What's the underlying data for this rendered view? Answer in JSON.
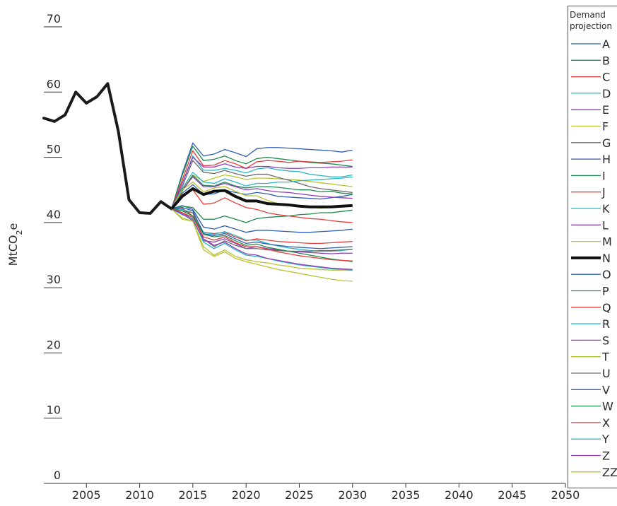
{
  "chart_data": {
    "type": "line",
    "title": "",
    "xlabel": "",
    "ylabel": {
      "main": "MtCO",
      "sub": "2",
      "suffix": "e"
    },
    "xlim": [
      2001,
      2050
    ],
    "ylim": [
      0,
      70
    ],
    "x_ticks": [
      2005,
      2010,
      2015,
      2020,
      2025,
      2030,
      2035,
      2040,
      2045,
      2050
    ],
    "x_tick_labels": [
      "2005",
      "2010",
      "2015",
      "2020",
      "2025",
      "2030",
      "2035",
      "2040",
      "2045",
      "2050"
    ],
    "y_ticks": [
      0,
      10,
      20,
      30,
      40,
      50,
      60,
      70
    ],
    "y_tick_labels": [
      "0",
      "10",
      "20",
      "30",
      "40",
      "50",
      "60",
      "70"
    ],
    "grid": false,
    "legend": {
      "title_lines": [
        "Demand",
        "projection"
      ],
      "placement": "right"
    },
    "historical": {
      "name": "",
      "color": "#1a1a1a",
      "x": [
        2001,
        2002,
        2003,
        2004,
        2005,
        2006,
        2007,
        2008,
        2009,
        2010,
        2011,
        2012,
        2013
      ],
      "values": [
        56.0,
        55.5,
        56.5,
        60.0,
        58.3,
        59.3,
        61.3,
        54.0,
        43.5,
        41.5,
        41.4,
        43.2,
        42.1
      ]
    },
    "projection_years": [
      2013,
      2014,
      2015,
      2016,
      2017,
      2018,
      2019,
      2020,
      2021,
      2022,
      2023,
      2024,
      2025,
      2026,
      2027,
      2028,
      2029,
      2030
    ],
    "series": [
      {
        "name": "A",
        "color": "#2f5fb0",
        "values": [
          42.1,
          47.5,
          52.2,
          50.2,
          50.5,
          51.2,
          50.7,
          50.1,
          51.3,
          51.5,
          51.5,
          51.4,
          51.3,
          51.2,
          51.1,
          51.0,
          50.8,
          51.1
        ]
      },
      {
        "name": "B",
        "color": "#1f8a4c",
        "values": [
          42.1,
          47.2,
          51.7,
          49.5,
          49.7,
          50.2,
          49.5,
          49.0,
          49.8,
          50.0,
          49.8,
          49.6,
          49.4,
          49.2,
          49.1,
          49.0,
          48.8,
          48.6
        ]
      },
      {
        "name": "C",
        "color": "#e83a3a",
        "values": [
          42.1,
          46.5,
          51.0,
          48.7,
          48.8,
          49.5,
          49.0,
          48.3,
          49.3,
          49.5,
          49.4,
          49.2,
          49.4,
          49.3,
          49.2,
          49.3,
          49.4,
          49.6
        ]
      },
      {
        "name": "D",
        "color": "#29b7c2",
        "values": [
          42.1,
          46.0,
          50.2,
          48.0,
          48.0,
          48.3,
          48.0,
          47.6,
          48.2,
          48.4,
          48.1,
          47.9,
          47.8,
          47.4,
          47.2,
          47.0,
          47.0,
          47.3
        ]
      },
      {
        "name": "E",
        "color": "#8e3db8",
        "values": [
          42.1,
          46.0,
          50.0,
          48.5,
          48.5,
          49.0,
          48.5,
          48.3,
          48.6,
          48.6,
          48.4,
          48.3,
          48.3,
          48.4,
          48.4,
          48.5,
          48.5,
          48.5
        ]
      },
      {
        "name": "F",
        "color": "#b8c22f",
        "values": [
          42.1,
          45.0,
          47.3,
          46.3,
          46.8,
          47.3,
          47.0,
          46.6,
          46.8,
          46.8,
          46.7,
          46.6,
          46.5,
          46.3,
          46.1,
          45.9,
          45.7,
          45.5
        ]
      },
      {
        "name": "G",
        "color": "#6a6a6a",
        "values": [
          42.1,
          45.5,
          49.5,
          47.7,
          47.5,
          48.0,
          47.5,
          47.1,
          47.4,
          47.4,
          46.9,
          46.5,
          46.0,
          45.5,
          45.2,
          45.0,
          44.8,
          44.6
        ]
      },
      {
        "name": "H",
        "color": "#2f5fb0",
        "values": [
          42.1,
          44.5,
          45.8,
          44.3,
          44.4,
          45.0,
          44.6,
          44.3,
          44.6,
          44.4,
          44.0,
          43.9,
          43.8,
          43.7,
          43.6,
          43.8,
          44.0,
          44.3
        ]
      },
      {
        "name": "I",
        "color": "#1f8a4c",
        "values": [
          42.1,
          44.8,
          47.2,
          45.7,
          45.6,
          46.2,
          45.6,
          45.3,
          45.5,
          45.5,
          45.4,
          45.2,
          45.0,
          45.0,
          44.7,
          44.8,
          44.5,
          44.4
        ]
      },
      {
        "name": "J",
        "color": "#e83a3a",
        "values": [
          42.1,
          44.3,
          45.0,
          42.8,
          43.0,
          43.8,
          43.0,
          42.3,
          42.0,
          41.5,
          41.2,
          41.0,
          40.8,
          40.6,
          40.5,
          40.3,
          40.1,
          40.0
        ]
      },
      {
        "name": "K",
        "color": "#29b7c2",
        "values": [
          42.1,
          45.2,
          47.7,
          46.2,
          46.0,
          46.7,
          46.2,
          45.6,
          46.0,
          46.0,
          46.2,
          46.2,
          46.4,
          46.5,
          46.6,
          46.7,
          46.8,
          47.0
        ]
      },
      {
        "name": "L",
        "color": "#8e3db8",
        "values": [
          42.1,
          45.0,
          47.0,
          45.5,
          45.5,
          46.0,
          45.5,
          45.0,
          45.2,
          44.9,
          44.7,
          44.6,
          44.4,
          44.2,
          44.0,
          43.9,
          43.8,
          43.7
        ]
      },
      {
        "name": "M",
        "color": "#b8c22f",
        "values": [
          42.1,
          45.0,
          46.2,
          44.7,
          45.3,
          45.5,
          44.8,
          44.1,
          44.1,
          43.4,
          42.9,
          42.6,
          42.4,
          42.3,
          42.2,
          42.3,
          42.5,
          42.7
        ]
      },
      {
        "name": "N",
        "color": "#111111",
        "values": [
          42.1,
          44.0,
          45.2,
          44.3,
          44.8,
          44.9,
          44.0,
          43.3,
          43.3,
          42.9,
          42.8,
          42.7,
          42.5,
          42.4,
          42.4,
          42.4,
          42.5,
          42.6
        ]
      },
      {
        "name": "O",
        "color": "#2f5fb0",
        "values": [
          42.1,
          42.6,
          42.0,
          39.3,
          39.0,
          39.5,
          39.0,
          38.5,
          38.8,
          38.8,
          38.7,
          38.6,
          38.5,
          38.5,
          38.6,
          38.7,
          38.8,
          39.0
        ]
      },
      {
        "name": "P",
        "color": "#1f8a4c",
        "values": [
          42.1,
          42.5,
          42.3,
          40.5,
          40.5,
          41.0,
          40.5,
          40.0,
          40.6,
          40.8,
          40.9,
          41.0,
          41.2,
          41.3,
          41.5,
          41.5,
          41.7,
          41.9
        ]
      },
      {
        "name": "Q",
        "color": "#e83a3a",
        "values": [
          42.1,
          42.2,
          41.0,
          38.5,
          38.3,
          38.5,
          37.8,
          37.2,
          37.5,
          37.3,
          37.1,
          37.0,
          36.9,
          36.8,
          36.8,
          36.9,
          37.0,
          37.1
        ]
      },
      {
        "name": "R",
        "color": "#29b7c2",
        "values": [
          42.1,
          42.0,
          41.5,
          38.5,
          38.2,
          38.6,
          38.0,
          37.3,
          37.3,
          36.8,
          36.4,
          36.1,
          35.9,
          35.7,
          35.6,
          35.6,
          35.7,
          35.9
        ]
      },
      {
        "name": "S",
        "color": "#8e3db8",
        "values": [
          42.1,
          41.5,
          40.5,
          37.2,
          37.0,
          37.5,
          36.8,
          36.0,
          36.3,
          36.0,
          35.8,
          35.6,
          35.5,
          35.4,
          35.3,
          35.2,
          35.3,
          35.3
        ]
      },
      {
        "name": "T",
        "color": "#b8c22f",
        "values": [
          42.1,
          40.7,
          40.2,
          36.3,
          35.0,
          35.8,
          34.8,
          34.3,
          34.0,
          33.8,
          33.5,
          33.3,
          33.0,
          32.9,
          32.8,
          32.7,
          32.7,
          32.7
        ]
      },
      {
        "name": "U",
        "color": "#6a6a6a",
        "values": [
          42.1,
          41.8,
          41.5,
          37.5,
          36.3,
          37.2,
          36.5,
          36.0,
          36.0,
          35.8,
          35.7,
          35.6,
          35.6,
          35.6,
          35.7,
          35.7,
          35.8,
          35.9
        ]
      },
      {
        "name": "V",
        "color": "#2f5fb0",
        "values": [
          42.1,
          42.3,
          41.8,
          38.3,
          38.0,
          38.3,
          37.5,
          36.8,
          37.0,
          36.7,
          36.5,
          36.3,
          36.2,
          36.1,
          36.0,
          36.1,
          36.2,
          36.3
        ]
      },
      {
        "name": "W",
        "color": "#1f8a4c",
        "values": [
          42.1,
          41.8,
          41.0,
          38.2,
          37.8,
          38.0,
          37.2,
          36.5,
          36.7,
          36.2,
          35.9,
          35.6,
          35.3,
          35.0,
          34.7,
          34.4,
          34.2,
          34.0
        ]
      },
      {
        "name": "X",
        "color": "#e83a3a",
        "values": [
          42.1,
          41.5,
          40.8,
          37.8,
          37.3,
          37.8,
          36.9,
          36.3,
          36.3,
          35.9,
          35.5,
          35.2,
          34.9,
          34.7,
          34.5,
          34.3,
          34.2,
          34.1
        ]
      },
      {
        "name": "Y",
        "color": "#29b7c2",
        "values": [
          42.1,
          41.2,
          40.6,
          37.0,
          36.0,
          36.8,
          35.8,
          35.0,
          34.8,
          34.5,
          34.1,
          33.8,
          33.5,
          33.3,
          33.1,
          32.9,
          32.8,
          32.7
        ]
      },
      {
        "name": "Z",
        "color": "#8e3db8",
        "values": [
          42.1,
          41.3,
          40.3,
          37.5,
          36.5,
          37.0,
          36.0,
          35.2,
          35.0,
          34.5,
          34.2,
          33.9,
          33.6,
          33.4,
          33.2,
          33.0,
          32.9,
          32.8
        ]
      },
      {
        "name": "ZZ",
        "color": "#b8c22f",
        "values": [
          42.1,
          40.5,
          40.2,
          35.8,
          34.8,
          35.5,
          34.5,
          34.0,
          33.6,
          33.2,
          32.8,
          32.5,
          32.2,
          31.9,
          31.6,
          31.3,
          31.1,
          31.0
        ]
      }
    ]
  }
}
